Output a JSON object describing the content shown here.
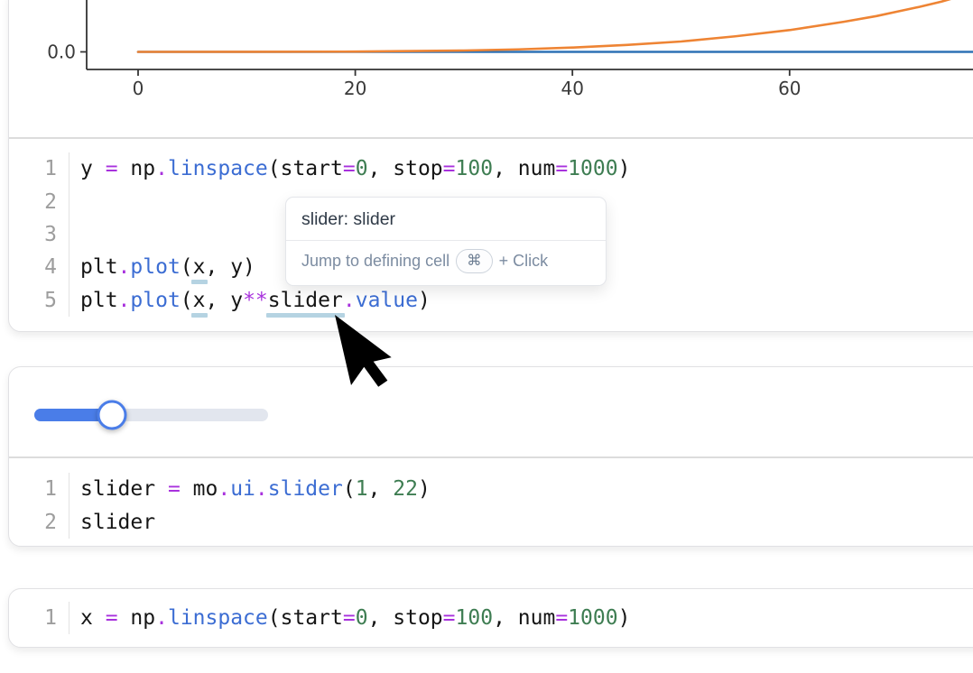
{
  "app": "marimo-notebook",
  "colors": {
    "accent_blue": "#4a7de8",
    "slider_track": "#e2e6ee",
    "code_operator": "#a831dd",
    "code_function": "#3c6dd3",
    "code_number": "#3e7d52",
    "code_plain": "#161616",
    "line_number": "#9d9d9d",
    "reference_underline": "#b5d3e2",
    "plot_blue": "#2e72b5",
    "plot_orange": "#ee8434"
  },
  "chart_data": {
    "type": "line",
    "title": "",
    "xlabel": "",
    "ylabel": "",
    "x_ticks": [
      0,
      20,
      40,
      60
    ],
    "y_tick_label": "0.0",
    "grid": false,
    "legend": "none",
    "note": "top of figure cropped; y axis shows 0.0 near baseline",
    "series": [
      {
        "name": "plt.plot(x, y)",
        "color": "#2e72b5",
        "points": [
          [
            0,
            0
          ],
          [
            77,
            0
          ]
        ]
      },
      {
        "name": "plt.plot(x, y**slider.value)",
        "color": "#ee8434",
        "points": [
          [
            0,
            0
          ],
          [
            10,
            0.0003
          ],
          [
            20,
            0.005
          ],
          [
            30,
            0.026
          ],
          [
            35,
            0.048
          ],
          [
            40,
            0.083
          ],
          [
            45,
            0.133
          ],
          [
            50,
            0.2
          ],
          [
            55,
            0.3
          ],
          [
            60,
            0.42
          ],
          [
            65,
            0.58
          ],
          [
            68,
            0.69
          ],
          [
            70,
            0.78
          ],
          [
            72,
            0.87
          ],
          [
            74,
            0.97
          ],
          [
            75,
            1.03
          ],
          [
            76,
            1.09
          ],
          [
            77,
            1.16
          ]
        ]
      }
    ]
  },
  "cells": [
    {
      "name": "plot-cell",
      "code_lines": [
        {
          "n": "1",
          "toks": [
            [
              "y ",
              "v"
            ],
            [
              "=",
              "o"
            ],
            [
              " np",
              "v"
            ],
            [
              ".",
              "o"
            ],
            [
              "linspace",
              "f"
            ],
            [
              "(start",
              "v"
            ],
            [
              "=",
              "o"
            ],
            [
              "0",
              "n"
            ],
            [
              ", stop",
              "v"
            ],
            [
              "=",
              "o"
            ],
            [
              "100",
              "n"
            ],
            [
              ", num",
              "v"
            ],
            [
              "=",
              "o"
            ],
            [
              "1000",
              "n"
            ],
            [
              ")",
              "v"
            ]
          ]
        },
        {
          "n": "2",
          "toks": []
        },
        {
          "n": "3",
          "toks": []
        },
        {
          "n": "4",
          "toks": [
            [
              "plt",
              "v"
            ],
            [
              ".",
              "o"
            ],
            [
              "plot",
              "f"
            ],
            [
              "(",
              "v"
            ],
            [
              "x",
              "v",
              "u"
            ],
            [
              ", y)",
              "v"
            ]
          ]
        },
        {
          "n": "5",
          "toks": [
            [
              "plt",
              "v"
            ],
            [
              ".",
              "o"
            ],
            [
              "plot",
              "f"
            ],
            [
              "(",
              "v"
            ],
            [
              "x",
              "v",
              "u"
            ],
            [
              ", y",
              "v"
            ],
            [
              "**",
              "o"
            ],
            [
              "slider",
              "v",
              "u"
            ],
            [
              ".",
              "o"
            ],
            [
              "value",
              "f"
            ],
            [
              ")",
              "v"
            ]
          ]
        }
      ]
    },
    {
      "name": "slider-cell",
      "slider": {
        "min": 1,
        "max": 22,
        "value": 8
      },
      "code_lines": [
        {
          "n": "1",
          "toks": [
            [
              "slider ",
              "v"
            ],
            [
              "=",
              "o"
            ],
            [
              " mo",
              "v"
            ],
            [
              ".",
              "o"
            ],
            [
              "ui",
              "f"
            ],
            [
              ".",
              "o"
            ],
            [
              "slider",
              "f"
            ],
            [
              "(",
              "v"
            ],
            [
              "1",
              "n"
            ],
            [
              ", ",
              "v"
            ],
            [
              "22",
              "n"
            ],
            [
              ")",
              "v"
            ]
          ]
        },
        {
          "n": "2",
          "toks": [
            [
              "slider",
              "v"
            ]
          ]
        }
      ]
    },
    {
      "name": "x-cell",
      "code_lines": [
        {
          "n": "1",
          "toks": [
            [
              "x ",
              "v"
            ],
            [
              "=",
              "o"
            ],
            [
              " np",
              "v"
            ],
            [
              ".",
              "o"
            ],
            [
              "linspace",
              "f"
            ],
            [
              "(start",
              "v"
            ],
            [
              "=",
              "o"
            ],
            [
              "0",
              "n"
            ],
            [
              ", stop",
              "v"
            ],
            [
              "=",
              "o"
            ],
            [
              "100",
              "n"
            ],
            [
              ", num",
              "v"
            ],
            [
              "=",
              "o"
            ],
            [
              "1000",
              "n"
            ],
            [
              ")",
              "v"
            ]
          ]
        }
      ]
    }
  ],
  "tooltip": {
    "title": "slider: slider",
    "action": "Jump to defining cell",
    "shortcut_key": "⌘",
    "shortcut_suffix": "+ Click"
  }
}
